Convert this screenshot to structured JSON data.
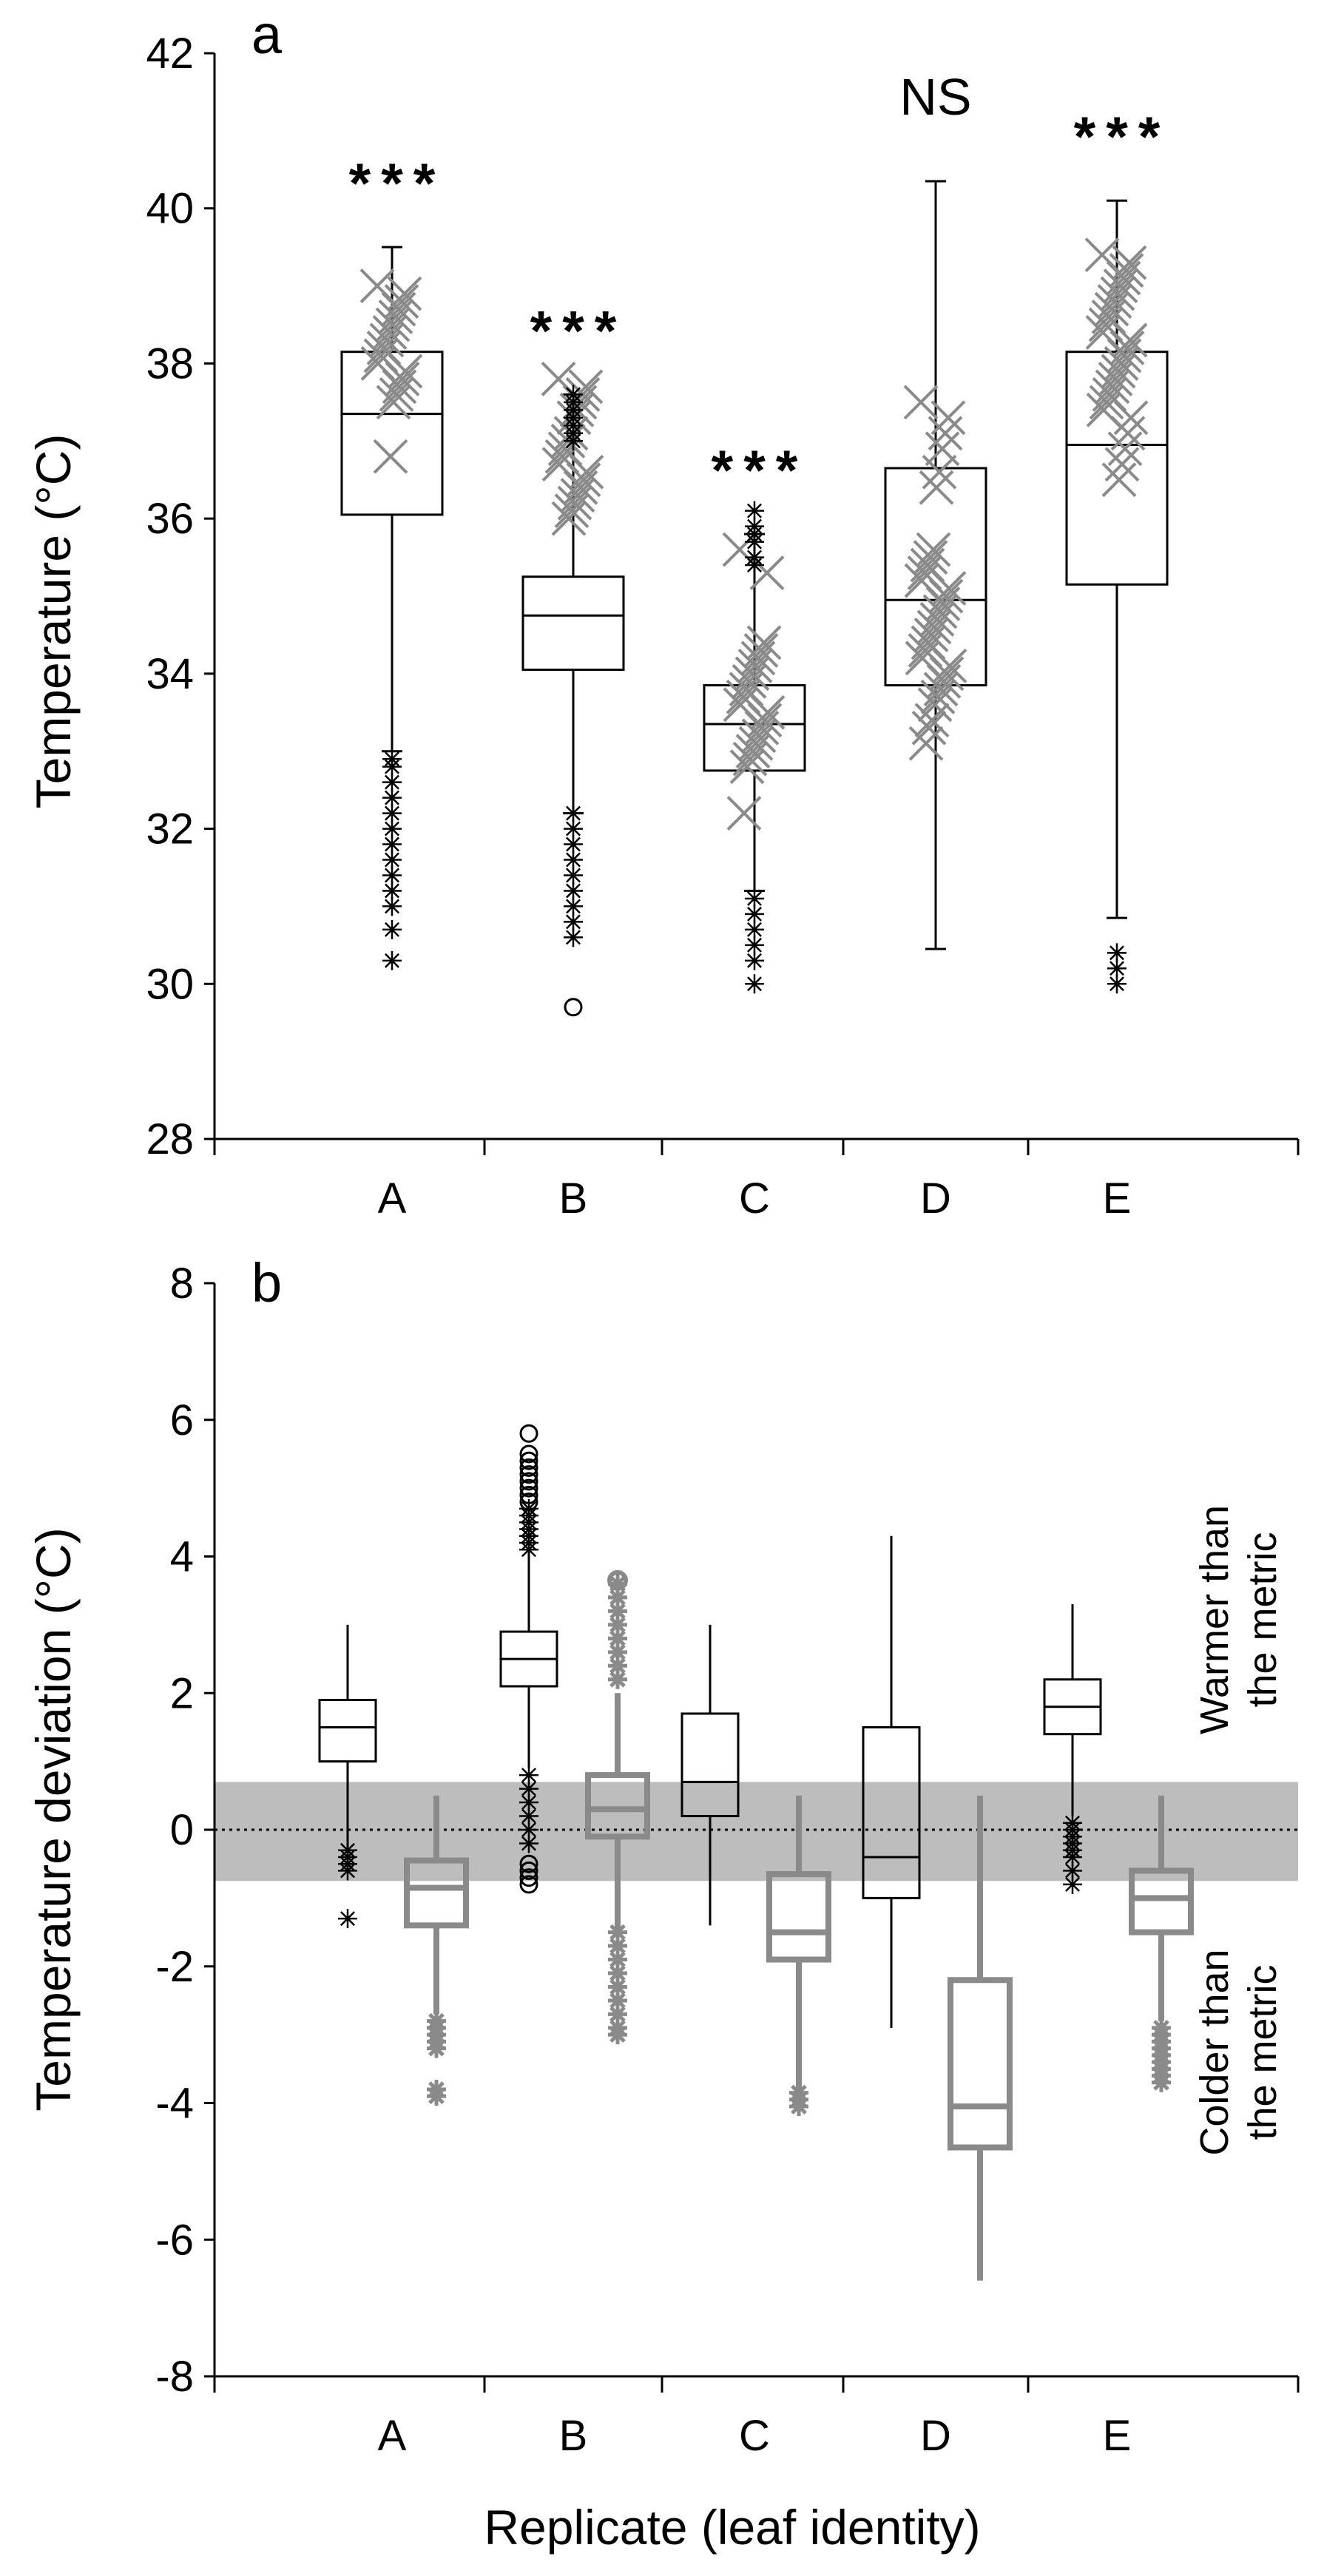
{
  "chart_data": [
    {
      "panel_label": "a",
      "type": "boxplot",
      "xlabel": "",
      "ylabel": "Temperature (°C)",
      "ylim": [
        28,
        42
      ],
      "yticks": [
        28,
        30,
        32,
        34,
        36,
        38,
        40,
        42
      ],
      "categories": [
        "A",
        "B",
        "C",
        "D",
        "E"
      ],
      "significance": [
        "***",
        "***",
        "***",
        "NS",
        "***"
      ],
      "boxes": [
        {
          "name": "A",
          "min": 33.0,
          "q1": 36.05,
          "median": 37.35,
          "q3": 38.15,
          "max": 39.5,
          "outliers_black": [
            32.9,
            32.8,
            32.6,
            32.4,
            32.2,
            32.0,
            31.8,
            31.6,
            31.4,
            31.2,
            31.0,
            30.7,
            30.3
          ],
          "outliers_gray": [
            39.0,
            38.9,
            38.8,
            38.7,
            38.6,
            38.5,
            38.4,
            38.3,
            38.2,
            38.1,
            38.0,
            37.9,
            37.8,
            37.7,
            37.6,
            37.5,
            36.8
          ]
        },
        {
          "name": "B",
          "min": 32.2,
          "q1": 34.05,
          "median": 34.75,
          "q3": 35.25,
          "max": 37.6,
          "outliers_black": [
            37.6,
            37.5,
            37.4,
            37.3,
            37.2,
            37.1,
            37.0,
            32.2,
            32.0,
            31.8,
            31.6,
            31.4,
            31.2,
            31.0,
            30.8,
            30.6
          ],
          "outliers_gray": [
            37.8,
            37.7,
            37.6,
            37.5,
            37.4,
            37.3,
            37.1,
            37.0,
            36.9,
            36.8,
            36.7,
            36.6,
            36.5,
            36.4,
            36.3,
            36.2,
            36.1,
            36.0
          ],
          "outliers_circle": [
            29.7
          ]
        },
        {
          "name": "C",
          "min": 31.2,
          "q1": 32.75,
          "median": 33.35,
          "q3": 33.85,
          "max": 35.8,
          "outliers_black": [
            36.1,
            35.9,
            35.8,
            35.7,
            35.5,
            35.4,
            31.1,
            30.9,
            30.7,
            30.5,
            30.3,
            30.0
          ],
          "outliers_gray": [
            35.6,
            35.3,
            34.4,
            34.3,
            34.2,
            34.1,
            34.0,
            33.9,
            33.8,
            33.7,
            33.6,
            33.5,
            33.4,
            33.3,
            33.2,
            33.1,
            33.0,
            32.9,
            32.8,
            32.2
          ]
        },
        {
          "name": "D",
          "min": 30.45,
          "q1": 33.85,
          "median": 34.95,
          "q3": 36.65,
          "max": 40.35,
          "outliers_black": [],
          "outliers_gray": [
            37.5,
            37.3,
            37.1,
            36.9,
            36.6,
            36.4,
            35.6,
            35.5,
            35.4,
            35.3,
            35.2,
            35.1,
            35.0,
            34.9,
            34.8,
            34.7,
            34.6,
            34.5,
            34.4,
            34.3,
            34.2,
            34.1,
            34.0,
            33.9,
            33.8,
            33.7,
            33.6,
            33.4,
            33.3,
            33.1
          ]
        },
        {
          "name": "E",
          "min": 30.85,
          "q1": 35.15,
          "median": 36.95,
          "q3": 38.15,
          "max": 40.1,
          "outliers_black": [
            30.4,
            30.2,
            30.0
          ],
          "outliers_gray": [
            39.4,
            39.3,
            39.2,
            39.1,
            39.0,
            38.9,
            38.8,
            38.7,
            38.6,
            38.5,
            38.4,
            38.3,
            38.2,
            38.1,
            38.0,
            37.9,
            37.8,
            37.7,
            37.6,
            37.5,
            37.4,
            37.3,
            37.1,
            36.9,
            36.7,
            36.5
          ]
        }
      ]
    },
    {
      "panel_label": "b",
      "type": "boxplot",
      "xlabel": "Replicate (leaf identity)",
      "ylabel": "Temperature deviation (°C)",
      "ylim": [
        -8,
        8
      ],
      "yticks": [
        -8,
        -6,
        -4,
        -2,
        0,
        2,
        4,
        6,
        8
      ],
      "categories": [
        "A",
        "B",
        "C",
        "D",
        "E"
      ],
      "reference_band": [
        -0.75,
        0.7
      ],
      "reference_line": 0,
      "annotations": {
        "upper": [
          "Warmer than",
          "the metric"
        ],
        "lower": [
          "Colder than",
          "the metric"
        ]
      },
      "series": [
        {
          "name": "black",
          "color": "#000000",
          "boxes": [
            {
              "name": "A",
              "min": -0.3,
              "q1": 1.0,
              "median": 1.5,
              "q3": 1.9,
              "max": 3.0,
              "outliers_black": [
                -0.3,
                -0.4,
                -0.5,
                -0.6,
                -1.3
              ]
            },
            {
              "name": "B",
              "min": 0.9,
              "q1": 2.1,
              "median": 2.5,
              "q3": 2.9,
              "max": 4.1,
              "outliers_black": [
                4.7,
                4.6,
                4.5,
                4.4,
                4.3,
                4.2,
                4.1,
                0.8,
                0.6,
                0.4,
                0.2,
                0.0,
                -0.2
              ],
              "outliers_circle": [
                5.8,
                5.5,
                5.4,
                5.3,
                5.2,
                5.1,
                5.0,
                4.9,
                4.8,
                -0.5,
                -0.6,
                -0.7,
                -0.8
              ]
            },
            {
              "name": "C",
              "min": -1.4,
              "q1": 0.2,
              "median": 0.7,
              "q3": 1.7,
              "max": 3.0
            },
            {
              "name": "D",
              "min": -2.9,
              "q1": -1.0,
              "median": -0.4,
              "q3": 1.5,
              "max": 4.3
            },
            {
              "name": "E",
              "min": 0.2,
              "q1": 1.4,
              "median": 1.8,
              "q3": 2.2,
              "max": 3.3,
              "outliers_black": [
                0.1,
                0.0,
                -0.1,
                -0.2,
                -0.3,
                -0.4,
                -0.6,
                -0.8
              ]
            }
          ]
        },
        {
          "name": "gray",
          "color": "#8a8a8a",
          "boxes": [
            {
              "name": "A",
              "min": -2.7,
              "q1": -1.4,
              "median": -0.85,
              "q3": -0.45,
              "max": 0.5,
              "outliers_gray": [
                -2.8,
                -2.9,
                -3.0,
                -3.1,
                -3.2,
                -3.8,
                -3.9
              ]
            },
            {
              "name": "B",
              "min": -1.5,
              "q1": -0.1,
              "median": 0.3,
              "q3": 0.8,
              "max": 2.0,
              "outliers_gray": [
                3.6,
                3.4,
                3.2,
                3.0,
                2.8,
                2.6,
                2.4,
                2.2,
                -1.5,
                -1.7,
                -1.9,
                -2.1,
                -2.3,
                -2.5,
                -2.7,
                -2.9,
                -3.0
              ],
              "outliers_circle": [
                3.65
              ]
            },
            {
              "name": "C",
              "min": -3.8,
              "q1": -1.9,
              "median": -1.5,
              "q3": -0.65,
              "max": 0.5,
              "outliers_gray": [
                -3.85,
                -3.95,
                -4.05
              ]
            },
            {
              "name": "D",
              "min": -6.6,
              "q1": -4.65,
              "median": -4.05,
              "q3": -2.2,
              "max": 0.5
            },
            {
              "name": "E",
              "min": -2.8,
              "q1": -1.5,
              "median": -1.0,
              "q3": -0.6,
              "max": 0.5,
              "outliers_gray": [
                -2.9,
                -3.0,
                -3.1,
                -3.2,
                -3.3,
                -3.4,
                -3.5,
                -3.6,
                -3.7
              ]
            }
          ]
        }
      ]
    }
  ]
}
